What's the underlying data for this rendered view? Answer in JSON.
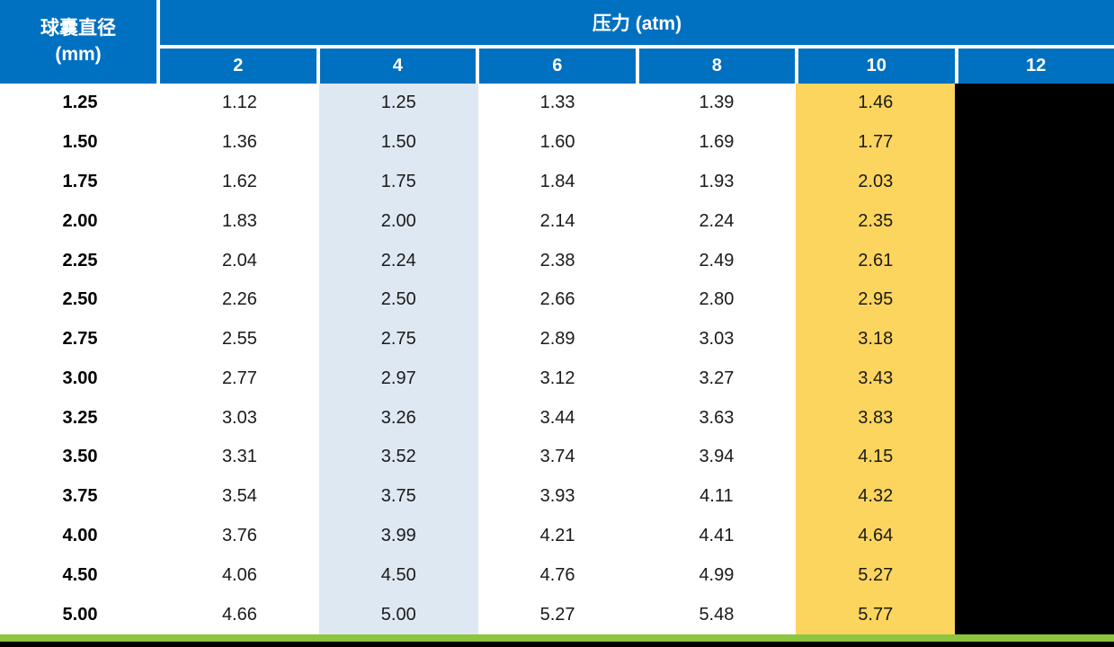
{
  "table": {
    "corner_header": {
      "line1": "球囊直径",
      "line2": "(mm)"
    },
    "pressure_header": "压力 (atm)",
    "pressure_columns": [
      "2",
      "4",
      "6",
      "8",
      "10",
      "12"
    ],
    "rows": [
      {
        "diameter": "1.25",
        "values": [
          "1.12",
          "1.25",
          "1.33",
          "1.39",
          "1.46",
          ""
        ]
      },
      {
        "diameter": "1.50",
        "values": [
          "1.36",
          "1.50",
          "1.60",
          "1.69",
          "1.77",
          ""
        ]
      },
      {
        "diameter": "1.75",
        "values": [
          "1.62",
          "1.75",
          "1.84",
          "1.93",
          "2.03",
          ""
        ]
      },
      {
        "diameter": "2.00",
        "values": [
          "1.83",
          "2.00",
          "2.14",
          "2.24",
          "2.35",
          ""
        ]
      },
      {
        "diameter": "2.25",
        "values": [
          "2.04",
          "2.24",
          "2.38",
          "2.49",
          "2.61",
          ""
        ]
      },
      {
        "diameter": "2.50",
        "values": [
          "2.26",
          "2.50",
          "2.66",
          "2.80",
          "2.95",
          ""
        ]
      },
      {
        "diameter": "2.75",
        "values": [
          "2.55",
          "2.75",
          "2.89",
          "3.03",
          "3.18",
          ""
        ]
      },
      {
        "diameter": "3.00",
        "values": [
          "2.77",
          "2.97",
          "3.12",
          "3.27",
          "3.43",
          ""
        ]
      },
      {
        "diameter": "3.25",
        "values": [
          "3.03",
          "3.26",
          "3.44",
          "3.63",
          "3.83",
          ""
        ]
      },
      {
        "diameter": "3.50",
        "values": [
          "3.31",
          "3.52",
          "3.74",
          "3.94",
          "4.15",
          ""
        ]
      },
      {
        "diameter": "3.75",
        "values": [
          "3.54",
          "3.75",
          "3.93",
          "4.11",
          "4.32",
          ""
        ]
      },
      {
        "diameter": "4.00",
        "values": [
          "3.76",
          "3.99",
          "4.21",
          "4.41",
          "4.64",
          ""
        ]
      },
      {
        "diameter": "4.50",
        "values": [
          "4.06",
          "4.50",
          "4.76",
          "4.99",
          "5.27",
          ""
        ]
      },
      {
        "diameter": "5.00",
        "values": [
          "4.66",
          "5.00",
          "5.27",
          "5.48",
          "5.77",
          ""
        ]
      }
    ],
    "highlights": {
      "light_blue_column": "4",
      "yellow_column": "10",
      "blacked_out_column": "12"
    }
  },
  "colors": {
    "header_blue": "#0070C0",
    "light_blue_highlight": "#DEE8F3",
    "yellow_highlight": "#FCD55E",
    "green_accent": "#8CC63E",
    "blackout": "#000000"
  }
}
